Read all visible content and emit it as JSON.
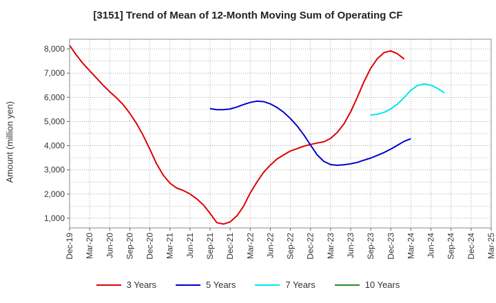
{
  "chart_data": {
    "type": "line",
    "title": "[3151]  Trend of Mean of 12-Month Moving Sum of Operating CF",
    "xlabel": "",
    "ylabel": "Amount (million yen)",
    "ylim": [
      600,
      8400
    ],
    "yticks": [
      1000,
      2000,
      3000,
      4000,
      5000,
      6000,
      7000,
      8000
    ],
    "ytick_labels": [
      "1,000",
      "2,000",
      "3,000",
      "4,000",
      "5,000",
      "6,000",
      "7,000",
      "8,000"
    ],
    "x_tick_labels": [
      "Dec-19",
      "Mar-20",
      "Jun-20",
      "Sep-20",
      "Dec-20",
      "Mar-21",
      "Jun-21",
      "Sep-21",
      "Dec-21",
      "Mar-22",
      "Jun-22",
      "Sep-22",
      "Dec-22",
      "Mar-23",
      "Jun-23",
      "Sep-23",
      "Dec-23",
      "Mar-24",
      "Jun-24",
      "Sep-24",
      "Dec-24",
      "Mar-25"
    ],
    "x_unit": "months since Dec-19",
    "x_max": 63,
    "grid": true,
    "legend_position": "bottom",
    "series": [
      {
        "name": "3 Years",
        "color": "#dd0000",
        "x": [
          0,
          1,
          2,
          3,
          4,
          5,
          6,
          7,
          8,
          9,
          10,
          11,
          12,
          13,
          14,
          15,
          16,
          17,
          18,
          19,
          20,
          21,
          22,
          23,
          24,
          25,
          26,
          27,
          28,
          29,
          30,
          31,
          32,
          33,
          34,
          35,
          36,
          37,
          38,
          39,
          40,
          41,
          42,
          43,
          44,
          45,
          46,
          47,
          48,
          49,
          50,
          51,
          52,
          53,
          54,
          55,
          56,
          57
        ],
        "values": [
          8150,
          7750,
          7400,
          7100,
          6800,
          6500,
          6230,
          5980,
          5700,
          5340,
          4920,
          4420,
          3850,
          3250,
          2780,
          2450,
          2250,
          2150,
          2000,
          1800,
          1550,
          1200,
          820,
          760,
          850,
          1100,
          1500,
          2050,
          2500,
          2900,
          3200,
          3450,
          3620,
          3780,
          3880,
          3980,
          4050,
          4110,
          4160,
          4300,
          4550,
          4900,
          5400,
          6000,
          6650,
          7200,
          7600,
          7850,
          7920,
          7800,
          7580,
          null,
          null,
          null,
          null,
          null,
          null,
          null
        ]
      },
      {
        "name": "5 Years",
        "color": "#0000cc",
        "x": [
          21,
          22,
          23,
          24,
          25,
          26,
          27,
          28,
          29,
          30,
          31,
          32,
          33,
          34,
          35,
          36,
          37,
          38,
          39,
          40,
          41,
          42,
          43,
          44,
          45,
          46,
          47,
          48,
          49,
          50,
          51,
          52,
          53,
          54,
          55,
          56,
          57
        ],
        "values": [
          5530,
          5490,
          5490,
          5520,
          5600,
          5700,
          5790,
          5840,
          5820,
          5730,
          5580,
          5380,
          5120,
          4820,
          4450,
          4030,
          3620,
          3350,
          3220,
          3190,
          3210,
          3250,
          3310,
          3400,
          3490,
          3600,
          3720,
          3860,
          4020,
          4180,
          4290,
          null,
          null,
          null,
          null,
          null,
          null
        ]
      },
      {
        "name": "7 Years",
        "color": "#00e5ee",
        "x": [
          45,
          46,
          47,
          48,
          49,
          50,
          51,
          52,
          53,
          54,
          55,
          56,
          57
        ],
        "values": [
          5270,
          5300,
          5380,
          5520,
          5720,
          5990,
          6290,
          6490,
          6550,
          6500,
          6370,
          6180,
          null
        ]
      },
      {
        "name": "10 Years",
        "color": "#228b22",
        "x": [],
        "values": []
      }
    ]
  }
}
